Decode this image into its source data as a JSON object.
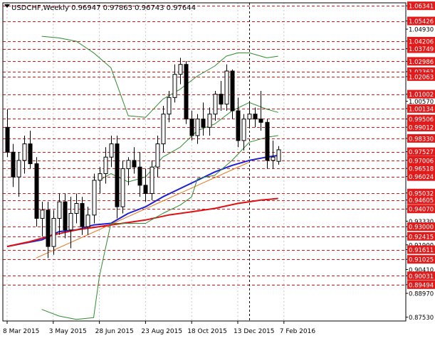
{
  "chart_data": {
    "type": "candlestick",
    "title": "USDCHF,Weekly  0.96947 0.97863 0.96743 0.97644",
    "symbol": "USDCHF",
    "timeframe": "Weekly",
    "ohlc_last": {
      "open": 0.96947,
      "high": 0.97863,
      "low": 0.96743,
      "close": 0.97644
    },
    "ylim": [
      0.873,
      1.0652
    ],
    "grid": true,
    "x_tick_labels": [
      "8 Mar 2015",
      "3 May 2015",
      "28 Jun 2015",
      "23 Aug 2015",
      "18 Oct 2015",
      "13 Dec 2015",
      "7 Feb 2016"
    ],
    "x_tick_index": [
      0,
      8,
      16,
      24,
      32,
      40,
      48
    ],
    "vertical_marker_index": 42,
    "price_axis_labels": [
      "1.06341",
      "1.05426",
      "1.04930",
      "1.04206",
      "1.03749",
      "1.02986",
      "1.02363",
      "1.02063",
      "1.01002",
      "1.00570",
      "1.00134",
      "0.99506",
      "0.99012",
      "0.98330",
      "0.97527",
      "0.97006",
      "0.96518",
      "0.96024",
      "0.95032",
      "0.94605",
      "0.94070",
      "0.93330",
      "0.93000",
      "0.92415",
      "0.91900",
      "0.91611",
      "0.91025",
      "0.90410",
      "0.90031",
      "0.89494",
      "0.88970",
      "0.87530"
    ],
    "highlighted_labels": [
      "1.06341",
      "1.05426",
      "1.04206",
      "1.03749",
      "1.02986",
      "1.02363",
      "1.02063",
      "1.01002",
      "1.00134",
      "0.99506",
      "0.99012",
      "0.98330",
      "0.97527",
      "0.97006",
      "0.96518",
      "0.96024",
      "0.95032",
      "0.94605",
      "0.94070",
      "0.93000",
      "0.92415",
      "0.91611",
      "0.91025",
      "0.90031",
      "0.89494"
    ],
    "level_lines": [
      1.06341,
      1.05426,
      1.04206,
      1.03749,
      1.02986,
      1.02363,
      1.02063,
      1.01002,
      1.00134,
      0.99506,
      0.99012,
      0.9833,
      0.97527,
      0.97006,
      0.96518,
      0.96024,
      0.95032,
      0.94605,
      0.9407,
      0.93,
      0.92415,
      0.91611,
      0.91025,
      0.90031,
      0.89494
    ],
    "candles": [
      {
        "o": 0.99,
        "h": 1.001,
        "l": 0.972,
        "c": 0.975
      },
      {
        "o": 0.975,
        "h": 0.98,
        "l": 0.954,
        "c": 0.96
      },
      {
        "o": 0.96,
        "h": 0.975,
        "l": 0.948,
        "c": 0.97
      },
      {
        "o": 0.97,
        "h": 0.985,
        "l": 0.962,
        "c": 0.98
      },
      {
        "o": 0.98,
        "h": 0.988,
        "l": 0.965,
        "c": 0.968
      },
      {
        "o": 0.968,
        "h": 0.972,
        "l": 0.93,
        "c": 0.935
      },
      {
        "o": 0.935,
        "h": 0.945,
        "l": 0.924,
        "c": 0.94
      },
      {
        "o": 0.94,
        "h": 0.945,
        "l": 0.911,
        "c": 0.918
      },
      {
        "o": 0.918,
        "h": 0.94,
        "l": 0.913,
        "c": 0.935
      },
      {
        "o": 0.935,
        "h": 0.95,
        "l": 0.925,
        "c": 0.945
      },
      {
        "o": 0.945,
        "h": 0.95,
        "l": 0.923,
        "c": 0.928
      },
      {
        "o": 0.928,
        "h": 0.948,
        "l": 0.917,
        "c": 0.938
      },
      {
        "o": 0.938,
        "h": 0.95,
        "l": 0.932,
        "c": 0.944
      },
      {
        "o": 0.944,
        "h": 0.948,
        "l": 0.925,
        "c": 0.93
      },
      {
        "o": 0.93,
        "h": 0.942,
        "l": 0.925,
        "c": 0.937
      },
      {
        "o": 0.937,
        "h": 0.962,
        "l": 0.932,
        "c": 0.958
      },
      {
        "o": 0.958,
        "h": 0.966,
        "l": 0.95,
        "c": 0.962
      },
      {
        "o": 0.962,
        "h": 0.978,
        "l": 0.956,
        "c": 0.972
      },
      {
        "o": 0.972,
        "h": 0.985,
        "l": 0.966,
        "c": 0.98
      },
      {
        "o": 0.98,
        "h": 0.985,
        "l": 0.935,
        "c": 0.942
      },
      {
        "o": 0.942,
        "h": 0.97,
        "l": 0.938,
        "c": 0.965
      },
      {
        "o": 0.965,
        "h": 0.972,
        "l": 0.955,
        "c": 0.97
      },
      {
        "o": 0.97,
        "h": 0.978,
        "l": 0.962,
        "c": 0.966
      },
      {
        "o": 0.966,
        "h": 0.975,
        "l": 0.948,
        "c": 0.955
      },
      {
        "o": 0.955,
        "h": 0.965,
        "l": 0.945,
        "c": 0.95
      },
      {
        "o": 0.95,
        "h": 0.97,
        "l": 0.946,
        "c": 0.966
      },
      {
        "o": 0.966,
        "h": 0.985,
        "l": 0.96,
        "c": 0.98
      },
      {
        "o": 0.98,
        "h": 1.003,
        "l": 0.975,
        "c": 0.998
      },
      {
        "o": 0.998,
        "h": 1.012,
        "l": 0.993,
        "c": 1.008
      },
      {
        "o": 1.008,
        "h": 1.028,
        "l": 1.005,
        "c": 1.022
      },
      {
        "o": 1.022,
        "h": 1.032,
        "l": 1.016,
        "c": 1.028
      },
      {
        "o": 1.028,
        "h": 1.03,
        "l": 0.992,
        "c": 0.995
      },
      {
        "o": 0.995,
        "h": 1.0,
        "l": 0.982,
        "c": 0.985
      },
      {
        "o": 0.985,
        "h": 0.998,
        "l": 0.98,
        "c": 0.995
      },
      {
        "o": 0.995,
        "h": 1.005,
        "l": 0.985,
        "c": 0.99
      },
      {
        "o": 0.99,
        "h": 1.002,
        "l": 0.985,
        "c": 0.998
      },
      {
        "o": 0.998,
        "h": 1.012,
        "l": 0.994,
        "c": 1.01
      },
      {
        "o": 1.01,
        "h": 1.018,
        "l": 1.0,
        "c": 1.004
      },
      {
        "o": 1.004,
        "h": 1.028,
        "l": 1.0,
        "c": 1.024
      },
      {
        "o": 1.024,
        "h": 1.025,
        "l": 0.995,
        "c": 1.0
      },
      {
        "o": 1.0,
        "h": 1.008,
        "l": 0.978,
        "c": 0.982
      },
      {
        "o": 0.982,
        "h": 0.998,
        "l": 0.976,
        "c": 0.995
      },
      {
        "o": 0.995,
        "h": 1.005,
        "l": 0.99,
        "c": 0.998
      },
      {
        "o": 0.998,
        "h": 1.002,
        "l": 0.99,
        "c": 0.995
      },
      {
        "o": 0.995,
        "h": 1.012,
        "l": 0.988,
        "c": 0.993
      },
      {
        "o": 0.993,
        "h": 0.995,
        "l": 0.965,
        "c": 0.97
      },
      {
        "o": 0.97,
        "h": 0.982,
        "l": 0.965,
        "c": 0.972
      },
      {
        "o": 0.96947,
        "h": 0.97863,
        "l": 0.96743,
        "c": 0.97644
      }
    ],
    "indicators": [
      {
        "kind": "moving-average",
        "color": "#1f1fd6",
        "points": [
          [
            0,
            0.918
          ],
          [
            3,
            0.92
          ],
          [
            6,
            0.922
          ],
          [
            9,
            0.927
          ],
          [
            12,
            0.928
          ],
          [
            15,
            0.931
          ],
          [
            18,
            0.932
          ],
          [
            21,
            0.938
          ],
          [
            24,
            0.942
          ],
          [
            27,
            0.948
          ],
          [
            30,
            0.953
          ],
          [
            33,
            0.958
          ],
          [
            36,
            0.963
          ],
          [
            39,
            0.967
          ],
          [
            42,
            0.97
          ],
          [
            45,
            0.972
          ],
          [
            47,
            0.973
          ]
        ]
      },
      {
        "kind": "moving-average",
        "color": "#e01010",
        "points": [
          [
            0,
            0.918
          ],
          [
            4,
            0.921
          ],
          [
            8,
            0.925
          ],
          [
            12,
            0.928
          ],
          [
            16,
            0.93
          ],
          [
            20,
            0.932
          ],
          [
            24,
            0.934
          ],
          [
            28,
            0.937
          ],
          [
            32,
            0.939
          ],
          [
            36,
            0.941
          ],
          [
            40,
            0.944
          ],
          [
            44,
            0.946
          ],
          [
            47,
            0.947
          ]
        ]
      },
      {
        "kind": "bollinger-upper",
        "color": "#2e8b2e",
        "points": [
          [
            6,
            1.045
          ],
          [
            9,
            1.044
          ],
          [
            12,
            1.042
          ],
          [
            15,
            1.035
          ],
          [
            18,
            1.026
          ],
          [
            21,
            0.997
          ],
          [
            24,
            0.996
          ],
          [
            27,
            1.007
          ],
          [
            30,
            1.013
          ],
          [
            33,
            1.021
          ],
          [
            36,
            1.027
          ],
          [
            38,
            1.033
          ],
          [
            40,
            1.035
          ],
          [
            42,
            1.035
          ],
          [
            45,
            1.032
          ],
          [
            47,
            1.033
          ]
        ]
      },
      {
        "kind": "bollinger-lower",
        "color": "#2e8b2e",
        "points": [
          [
            6,
            0.88
          ],
          [
            9,
            0.876
          ],
          [
            12,
            0.874
          ],
          [
            15,
            0.875
          ],
          [
            16,
            0.9
          ],
          [
            18,
            0.932
          ],
          [
            21,
            0.932
          ],
          [
            24,
            0.932
          ],
          [
            27,
            0.938
          ],
          [
            30,
            0.943
          ],
          [
            32,
            0.948
          ],
          [
            33,
            0.959
          ],
          [
            36,
            0.961
          ],
          [
            39,
            0.97
          ],
          [
            42,
            0.981
          ],
          [
            45,
            0.984
          ],
          [
            47,
            0.985
          ]
        ]
      },
      {
        "kind": "bollinger-middle",
        "color": "#2e8b2e",
        "points": [
          [
            16,
            0.958
          ],
          [
            18,
            0.962
          ],
          [
            21,
            0.957
          ],
          [
            24,
            0.96
          ],
          [
            27,
            0.972
          ],
          [
            30,
            0.978
          ],
          [
            33,
            0.988
          ],
          [
            36,
            0.992
          ],
          [
            39,
            1.0
          ],
          [
            42,
            1.005
          ],
          [
            45,
            1.001
          ],
          [
            47,
            0.999
          ]
        ]
      }
    ],
    "trendline": {
      "color": "#e8741a",
      "from": [
        5,
        0.911
      ],
      "to": [
        42,
        0.969
      ]
    }
  }
}
